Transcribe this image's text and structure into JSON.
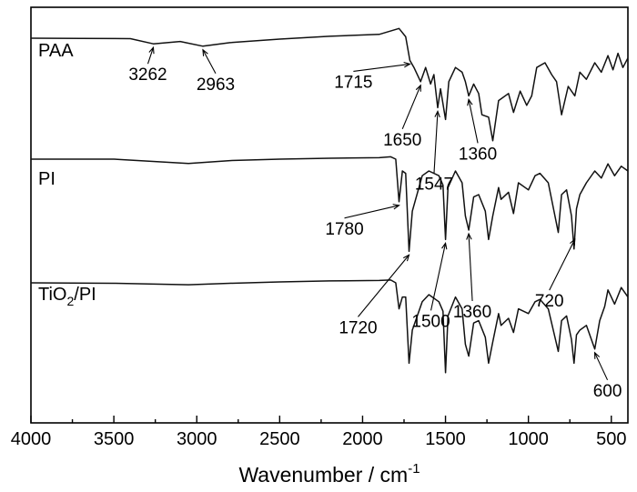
{
  "chart_data": {
    "type": "line",
    "title": "",
    "xlabel": "Wavenumber / cm",
    "xlabel_superscript": "-1",
    "ylabel": "",
    "xlim": [
      4000,
      400
    ],
    "x_reversed": true,
    "y_ticks_shown": false,
    "grid": false,
    "xticks": [
      4000,
      3500,
      3000,
      2500,
      2000,
      1500,
      1000,
      500
    ],
    "series": [
      {
        "name": "PAA",
        "points": [
          [
            4000,
            0.04
          ],
          [
            3700,
            0.03
          ],
          [
            3400,
            0.02
          ],
          [
            3262,
            -0.2
          ],
          [
            3100,
            -0.1
          ],
          [
            2963,
            -0.3
          ],
          [
            2800,
            -0.15
          ],
          [
            2500,
            0
          ],
          [
            2200,
            0.12
          ],
          [
            1900,
            0.2
          ],
          [
            1780,
            0.45
          ],
          [
            1740,
            0.1
          ],
          [
            1715,
            -0.9
          ],
          [
            1690,
            -1.2
          ],
          [
            1650,
            -1.8
          ],
          [
            1620,
            -1.2
          ],
          [
            1590,
            -1.9
          ],
          [
            1570,
            -1.5
          ],
          [
            1547,
            -2.9
          ],
          [
            1530,
            -2.1
          ],
          [
            1500,
            -3.4
          ],
          [
            1480,
            -1.8
          ],
          [
            1440,
            -1.2
          ],
          [
            1400,
            -1.4
          ],
          [
            1380,
            -1.8
          ],
          [
            1360,
            -2.4
          ],
          [
            1330,
            -1.9
          ],
          [
            1300,
            -2.3
          ],
          [
            1280,
            -3.2
          ],
          [
            1240,
            -3.3
          ],
          [
            1215,
            -4.3
          ],
          [
            1180,
            -2.6
          ],
          [
            1120,
            -2.3
          ],
          [
            1090,
            -3.1
          ],
          [
            1050,
            -2.2
          ],
          [
            1010,
            -2.8
          ],
          [
            980,
            -2.4
          ],
          [
            950,
            -1.2
          ],
          [
            900,
            -1.0
          ],
          [
            860,
            -1.5
          ],
          [
            830,
            -1.8
          ],
          [
            800,
            -3.2
          ],
          [
            760,
            -2.0
          ],
          [
            720,
            -2.4
          ],
          [
            690,
            -1.4
          ],
          [
            650,
            -1.7
          ],
          [
            600,
            -1.0
          ],
          [
            560,
            -1.4
          ],
          [
            520,
            -0.7
          ],
          [
            490,
            -1.3
          ],
          [
            460,
            -0.6
          ],
          [
            430,
            -1.2
          ],
          [
            400,
            -0.8
          ]
        ],
        "label_annotations": [
          "3262",
          "2963",
          "1715",
          "1650",
          "1547",
          "1360"
        ]
      },
      {
        "name": "PI",
        "points": [
          [
            4000,
            0
          ],
          [
            3500,
            0
          ],
          [
            3050,
            -0.18
          ],
          [
            2800,
            -0.06
          ],
          [
            2500,
            0
          ],
          [
            2200,
            0.04
          ],
          [
            1900,
            0.06
          ],
          [
            1830,
            0.1
          ],
          [
            1800,
            0
          ],
          [
            1780,
            -1.8
          ],
          [
            1760,
            -0.5
          ],
          [
            1740,
            -0.6
          ],
          [
            1720,
            -3.9
          ],
          [
            1700,
            -2.2
          ],
          [
            1640,
            -0.7
          ],
          [
            1600,
            -0.5
          ],
          [
            1540,
            -0.7
          ],
          [
            1515,
            -1.1
          ],
          [
            1500,
            -3.4
          ],
          [
            1485,
            -1.2
          ],
          [
            1440,
            -0.5
          ],
          [
            1400,
            -1.0
          ],
          [
            1380,
            -2.4
          ],
          [
            1360,
            -3.0
          ],
          [
            1330,
            -1.6
          ],
          [
            1300,
            -1.5
          ],
          [
            1260,
            -2.2
          ],
          [
            1240,
            -3.4
          ],
          [
            1215,
            -2.4
          ],
          [
            1180,
            -1.2
          ],
          [
            1165,
            -1.7
          ],
          [
            1120,
            -1.4
          ],
          [
            1090,
            -2.3
          ],
          [
            1060,
            -1.0
          ],
          [
            1000,
            -1.3
          ],
          [
            960,
            -0.7
          ],
          [
            930,
            -0.6
          ],
          [
            880,
            -1.0
          ],
          [
            820,
            -3.1
          ],
          [
            800,
            -1.5
          ],
          [
            770,
            -1.3
          ],
          [
            740,
            -2.4
          ],
          [
            725,
            -3.8
          ],
          [
            710,
            -2.1
          ],
          [
            690,
            -1.5
          ],
          [
            650,
            -1.0
          ],
          [
            600,
            -0.5
          ],
          [
            560,
            -0.8
          ],
          [
            520,
            -0.2
          ],
          [
            480,
            -0.7
          ],
          [
            440,
            -0.3
          ],
          [
            400,
            -0.5
          ]
        ],
        "label_annotations": [
          "1780",
          "1720",
          "1500",
          "1360",
          "720"
        ]
      },
      {
        "name": "TiO2/PI",
        "name_text": "TiO",
        "name_subscript": "2",
        "name_suffix": "/PI",
        "points": [
          [
            4000,
            0
          ],
          [
            3500,
            -0.02
          ],
          [
            3050,
            -0.08
          ],
          [
            2800,
            -0.02
          ],
          [
            2500,
            0.04
          ],
          [
            2200,
            0.08
          ],
          [
            1900,
            0.1
          ],
          [
            1830,
            0.12
          ],
          [
            1800,
            0
          ],
          [
            1780,
            -1.1
          ],
          [
            1760,
            -0.6
          ],
          [
            1740,
            -0.6
          ],
          [
            1720,
            -3.4
          ],
          [
            1700,
            -2.0
          ],
          [
            1640,
            -0.8
          ],
          [
            1600,
            -0.5
          ],
          [
            1540,
            -0.8
          ],
          [
            1515,
            -1.2
          ],
          [
            1500,
            -3.8
          ],
          [
            1485,
            -1.4
          ],
          [
            1440,
            -0.6
          ],
          [
            1400,
            -1.1
          ],
          [
            1380,
            -2.6
          ],
          [
            1360,
            -3.1
          ],
          [
            1330,
            -1.7
          ],
          [
            1300,
            -1.6
          ],
          [
            1260,
            -2.3
          ],
          [
            1240,
            -3.4
          ],
          [
            1215,
            -2.5
          ],
          [
            1180,
            -1.3
          ],
          [
            1165,
            -1.8
          ],
          [
            1120,
            -1.5
          ],
          [
            1090,
            -2.1
          ],
          [
            1060,
            -1.1
          ],
          [
            1000,
            -1.3
          ],
          [
            960,
            -0.8
          ],
          [
            930,
            -0.7
          ],
          [
            880,
            -1.1
          ],
          [
            820,
            -2.9
          ],
          [
            800,
            -1.6
          ],
          [
            770,
            -1.4
          ],
          [
            740,
            -2.4
          ],
          [
            725,
            -3.4
          ],
          [
            710,
            -2.2
          ],
          [
            690,
            -2.0
          ],
          [
            650,
            -1.8
          ],
          [
            600,
            -2.8
          ],
          [
            570,
            -1.6
          ],
          [
            540,
            -1.0
          ],
          [
            520,
            -0.3
          ],
          [
            480,
            -0.9
          ],
          [
            440,
            -0.2
          ],
          [
            400,
            -0.6
          ]
        ],
        "label_annotations": [
          "600"
        ]
      }
    ],
    "annotations": [
      {
        "text": "3262",
        "series": "PAA",
        "x": 3262
      },
      {
        "text": "2963",
        "series": "PAA",
        "x": 2963
      },
      {
        "text": "1715",
        "series": "PAA",
        "x": 1715
      },
      {
        "text": "1650",
        "series": "PAA",
        "x": 1650
      },
      {
        "text": "1547",
        "series": "PAA",
        "x": 1547
      },
      {
        "text": "1360",
        "series": "PAA",
        "x": 1360
      },
      {
        "text": "1780",
        "series": "PI",
        "x": 1780
      },
      {
        "text": "1720",
        "series": "PI",
        "x": 1720
      },
      {
        "text": "1500",
        "series": "PI",
        "x": 1500
      },
      {
        "text": "1360",
        "series": "PI",
        "x": 1360
      },
      {
        "text": "720",
        "series": "PI",
        "x": 720
      },
      {
        "text": "600",
        "series": "TiO2/PI",
        "x": 600
      }
    ]
  }
}
